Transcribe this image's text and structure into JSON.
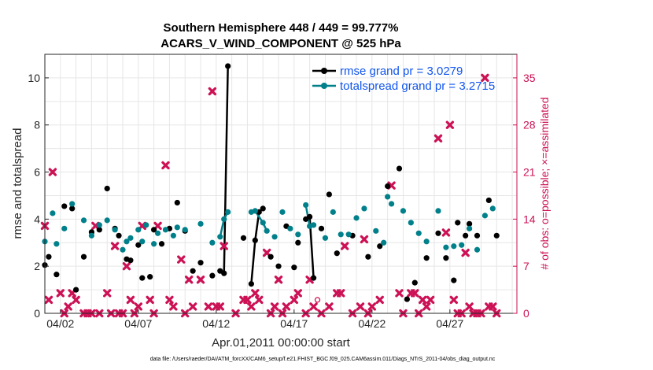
{
  "chart_data": {
    "type": "line",
    "title": "Southern Hemisphere 448 / 449 = 99.777%",
    "subtitle": "ACARS_V_WIND_COMPONENT @ 525 hPa",
    "xlabel": "Apr.01,2011 00:00:00 start",
    "ylabel": "rmse and totalspread",
    "y2label": "# of obs: o=possible; ×=assimilated",
    "xlim": [
      1.0,
      31.3
    ],
    "ylim": [
      0,
      11
    ],
    "y2lim": [
      0,
      38.5
    ],
    "x_ticks": [
      2,
      7,
      12,
      17,
      22,
      27
    ],
    "x_tick_labels": [
      "04/02",
      "04/07",
      "04/12",
      "04/17",
      "04/22",
      "04/27"
    ],
    "y_ticks": [
      0,
      2,
      4,
      6,
      8,
      10
    ],
    "y_tick_labels": [
      "0",
      "2",
      "4",
      "6",
      "8",
      "10"
    ],
    "y2_ticks": [
      0,
      7,
      14,
      21,
      28,
      35
    ],
    "y2_tick_labels": [
      "0",
      "7",
      "14",
      "21",
      "28",
      "35"
    ],
    "grid": true,
    "legend_position": "top-right",
    "footnote": "data file: /Users/raeder/DAI/ATM_forcXX/CAM6_setup/f.e21.FHIST_BGC.f09_025.CAM6assim.011/Diags_NTrS_2011-04/obs_diag_output.nc",
    "colors": {
      "rmse": "#000000",
      "spread": "#00808a",
      "obs": "#cc1155",
      "legend_text": "#1155ee"
    },
    "series": [
      {
        "name": "rmse grand pr = 3.0279",
        "points": [
          [
            1.0,
            2.05
          ],
          [
            1.25,
            2.4
          ],
          [
            1.75,
            1.65
          ],
          [
            2.25,
            4.55
          ],
          [
            2.75,
            4.45
          ],
          [
            3.0,
            1.0
          ],
          [
            3.5,
            2.4
          ],
          [
            4.0,
            3.45
          ],
          [
            4.5,
            3.55
          ],
          [
            5.0,
            5.3
          ],
          [
            5.5,
            3.6
          ],
          [
            5.75,
            3.3
          ],
          [
            6.25,
            2.3
          ],
          [
            6.5,
            2.25
          ],
          [
            7.0,
            2.9
          ],
          [
            7.25,
            1.5
          ],
          [
            7.75,
            1.55
          ],
          [
            8.0,
            3.55
          ],
          [
            8.5,
            2.95
          ],
          [
            9.0,
            3.6
          ],
          [
            9.5,
            4.7
          ],
          [
            10.0,
            3.5
          ],
          [
            10.5,
            1.8
          ],
          [
            11.0,
            2.15
          ],
          [
            11.75,
            1.6
          ],
          [
            12.25,
            1.8
          ],
          [
            12.5,
            1.7
          ],
          [
            12.75,
            10.5
          ],
          [
            13.75,
            3.2
          ],
          [
            14.25,
            1.25
          ],
          [
            14.5,
            3.1
          ],
          [
            14.75,
            4.3
          ],
          [
            15.0,
            4.45
          ],
          [
            15.5,
            2.4
          ],
          [
            16.0,
            2.0
          ],
          [
            16.5,
            3.7
          ],
          [
            17.0,
            1.95
          ],
          [
            17.25,
            3.0
          ],
          [
            17.75,
            4.0
          ],
          [
            18.0,
            4.1
          ],
          [
            18.25,
            1.5
          ],
          [
            18.75,
            3.6
          ],
          [
            19.25,
            5.05
          ],
          [
            19.75,
            2.55
          ],
          [
            20.75,
            3.3
          ],
          [
            21.75,
            2.4
          ],
          [
            22.5,
            2.85
          ],
          [
            23.0,
            5.4
          ],
          [
            23.75,
            6.15
          ],
          [
            24.25,
            0.6
          ],
          [
            24.75,
            1.3
          ],
          [
            25.5,
            2.35
          ],
          [
            26.25,
            3.4
          ],
          [
            26.75,
            2.35
          ],
          [
            27.25,
            1.4
          ],
          [
            27.5,
            3.85
          ],
          [
            28.0,
            3.3
          ],
          [
            28.25,
            3.8
          ],
          [
            28.75,
            3.3
          ],
          [
            29.5,
            4.8
          ],
          [
            30.0,
            3.3
          ]
        ],
        "connected_segments": [
          [
            [
              12.25,
              1.8
            ],
            [
              12.5,
              1.7
            ],
            [
              12.75,
              10.5
            ]
          ],
          [
            [
              14.25,
              1.25
            ],
            [
              14.5,
              3.1
            ],
            [
              14.75,
              4.3
            ],
            [
              15.0,
              4.45
            ]
          ],
          [
            [
              17.75,
              4.0
            ],
            [
              18.0,
              4.1
            ],
            [
              18.25,
              1.5
            ]
          ]
        ]
      },
      {
        "name": "totalspread grand pr = 3.2715",
        "points": [
          [
            1.0,
            3.05
          ],
          [
            1.5,
            4.25
          ],
          [
            1.75,
            2.95
          ],
          [
            2.25,
            3.6
          ],
          [
            2.75,
            4.65
          ],
          [
            3.5,
            3.95
          ],
          [
            4.0,
            3.3
          ],
          [
            4.5,
            3.75
          ],
          [
            5.0,
            3.95
          ],
          [
            5.5,
            3.55
          ],
          [
            6.0,
            2.7
          ],
          [
            6.25,
            3.05
          ],
          [
            6.5,
            3.2
          ],
          [
            7.0,
            3.55
          ],
          [
            7.25,
            3.05
          ],
          [
            7.5,
            3.75
          ],
          [
            8.0,
            2.95
          ],
          [
            8.25,
            3.4
          ],
          [
            8.75,
            3.55
          ],
          [
            9.25,
            3.3
          ],
          [
            9.5,
            3.65
          ],
          [
            10.0,
            3.55
          ],
          [
            11.0,
            3.8
          ],
          [
            11.75,
            3.0
          ],
          [
            12.25,
            3.25
          ],
          [
            12.5,
            4.0
          ],
          [
            12.75,
            4.3
          ],
          [
            14.25,
            4.3
          ],
          [
            14.5,
            4.35
          ],
          [
            15.0,
            3.85
          ],
          [
            15.25,
            3.5
          ],
          [
            15.75,
            3.25
          ],
          [
            16.25,
            4.3
          ],
          [
            16.75,
            3.6
          ],
          [
            17.25,
            3.35
          ],
          [
            17.75,
            4.6
          ],
          [
            18.0,
            3.7
          ],
          [
            18.25,
            3.75
          ],
          [
            19.0,
            3.2
          ],
          [
            19.5,
            4.3
          ],
          [
            20.0,
            3.35
          ],
          [
            20.5,
            3.35
          ],
          [
            21.0,
            4.05
          ],
          [
            21.5,
            4.45
          ],
          [
            22.25,
            3.5
          ],
          [
            22.75,
            3.0
          ],
          [
            23.0,
            4.95
          ],
          [
            23.25,
            4.65
          ],
          [
            24.0,
            4.35
          ],
          [
            24.5,
            3.85
          ],
          [
            25.0,
            3.4
          ],
          [
            25.5,
            3.05
          ],
          [
            26.25,
            4.35
          ],
          [
            26.75,
            2.8
          ],
          [
            27.25,
            2.85
          ],
          [
            27.75,
            2.9
          ],
          [
            28.25,
            3.6
          ],
          [
            28.75,
            2.7
          ],
          [
            29.25,
            4.15
          ],
          [
            29.75,
            4.45
          ]
        ],
        "connected_segments": [
          [
            [
              12.25,
              3.25
            ],
            [
              12.5,
              4.0
            ],
            [
              12.75,
              4.3
            ]
          ],
          [
            [
              14.25,
              4.3
            ],
            [
              14.5,
              4.35
            ],
            [
              15.0,
              3.85
            ],
            [
              15.25,
              3.5
            ]
          ],
          [
            [
              17.75,
              4.6
            ],
            [
              18.0,
              3.7
            ],
            [
              18.25,
              3.75
            ]
          ]
        ]
      },
      {
        "name": "obs assimilated",
        "points": [
          [
            1.0,
            13
          ],
          [
            1.25,
            2
          ],
          [
            1.5,
            21
          ],
          [
            2.0,
            3
          ],
          [
            2.25,
            0
          ],
          [
            2.5,
            1
          ],
          [
            2.75,
            3
          ],
          [
            3.0,
            2
          ],
          [
            3.5,
            0
          ],
          [
            3.75,
            0
          ],
          [
            4.0,
            0
          ],
          [
            4.25,
            13
          ],
          [
            4.5,
            0
          ],
          [
            5.0,
            3
          ],
          [
            5.25,
            0
          ],
          [
            5.5,
            10
          ],
          [
            5.75,
            0
          ],
          [
            6.0,
            0
          ],
          [
            6.25,
            7
          ],
          [
            6.5,
            2
          ],
          [
            6.75,
            0
          ],
          [
            7.0,
            1
          ],
          [
            7.25,
            13
          ],
          [
            7.75,
            2
          ],
          [
            8.0,
            0
          ],
          [
            8.25,
            13
          ],
          [
            8.75,
            22
          ],
          [
            9.0,
            2
          ],
          [
            9.25,
            1
          ],
          [
            9.75,
            8
          ],
          [
            10.0,
            0
          ],
          [
            10.25,
            5
          ],
          [
            10.5,
            1
          ],
          [
            11.0,
            5
          ],
          [
            11.5,
            1
          ],
          [
            11.75,
            33
          ],
          [
            12.0,
            1
          ],
          [
            12.25,
            1
          ],
          [
            12.5,
            10
          ],
          [
            13.25,
            0
          ],
          [
            13.75,
            2
          ],
          [
            14.0,
            2
          ],
          [
            14.25,
            1
          ],
          [
            14.5,
            3
          ],
          [
            14.75,
            2
          ],
          [
            15.25,
            9
          ],
          [
            15.5,
            0
          ],
          [
            15.75,
            1
          ],
          [
            16.0,
            5
          ],
          [
            16.25,
            0
          ],
          [
            16.5,
            1
          ],
          [
            17.0,
            2
          ],
          [
            17.25,
            3
          ],
          [
            17.75,
            0
          ],
          [
            18.0,
            5
          ],
          [
            18.25,
            1
          ],
          [
            18.75,
            0
          ],
          [
            19.25,
            1
          ],
          [
            19.75,
            3
          ],
          [
            20.0,
            3
          ],
          [
            20.25,
            10
          ],
          [
            20.75,
            0
          ],
          [
            21.25,
            1
          ],
          [
            21.5,
            11
          ],
          [
            21.75,
            0
          ],
          [
            22.0,
            1
          ],
          [
            22.5,
            2
          ],
          [
            23.25,
            19
          ],
          [
            23.75,
            3
          ],
          [
            24.0,
            0
          ],
          [
            24.5,
            3
          ],
          [
            24.75,
            3
          ],
          [
            25.0,
            0
          ],
          [
            25.25,
            2
          ],
          [
            25.5,
            1
          ],
          [
            25.75,
            2
          ],
          [
            26.25,
            26
          ],
          [
            26.75,
            12
          ],
          [
            27.0,
            28
          ],
          [
            27.25,
            2
          ],
          [
            27.5,
            0
          ],
          [
            27.75,
            0
          ],
          [
            28.0,
            9
          ],
          [
            28.25,
            1
          ],
          [
            28.5,
            0
          ],
          [
            28.75,
            0
          ],
          [
            29.0,
            0
          ],
          [
            29.25,
            35
          ],
          [
            29.5,
            1
          ],
          [
            29.75,
            1
          ],
          [
            30.0,
            0
          ]
        ]
      },
      {
        "name": "obs possible",
        "points": [
          [
            18.5,
            2
          ]
        ]
      }
    ]
  }
}
